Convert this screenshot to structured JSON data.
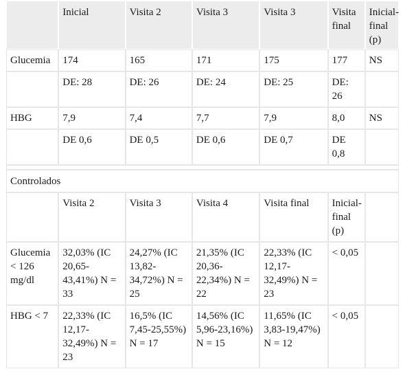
{
  "table1": {
    "headers": [
      "",
      "Inicial",
      "Visita 2",
      "Visita 3",
      "Visita 3",
      "Visita final",
      "Inicial-final (p)"
    ],
    "rows": [
      [
        "Glucemia",
        "174",
        "165",
        "171",
        "175",
        "177",
        "NS"
      ],
      [
        "",
        "DE: 28",
        "DE: 26",
        "DE: 24",
        "DE: 25",
        "DE: 26",
        ""
      ],
      [
        "HBG",
        "7,9",
        "7,4",
        "7,7",
        "7,9",
        "8,0",
        "NS"
      ],
      [
        "",
        "DE 0,6",
        "DE 0,5",
        "DE 0,6",
        "DE 0,7",
        "DE 0,8",
        ""
      ]
    ]
  },
  "table2": {
    "section_title": "Controlados",
    "headers": [
      "",
      "Visita 2",
      "Visita 3",
      "Visita 4",
      "Visita final",
      "Inicial-final (p)",
      ""
    ],
    "rows": [
      [
        "Glucemia < 126 mg/dl",
        "32,03% (IC 20,65-43,41%) N = 33",
        "24,27% (IC 13,82-34,72%) N = 25",
        "21,35% (IC 20,36-22,34%) N = 22",
        "22,33% (IC 12,17-32,49%) N = 23",
        "< 0,05",
        ""
      ],
      [
        "HBG < 7",
        "22,33% (IC 12,17-32,49%) N = 23",
        "16,5% (IC 7,45-25,55%) N = 17",
        "14,56% (IC 5,96-23,16%) N = 15",
        "11,65% (IC 3,83-19,47%) N = 12",
        "< 0,05",
        ""
      ]
    ]
  }
}
